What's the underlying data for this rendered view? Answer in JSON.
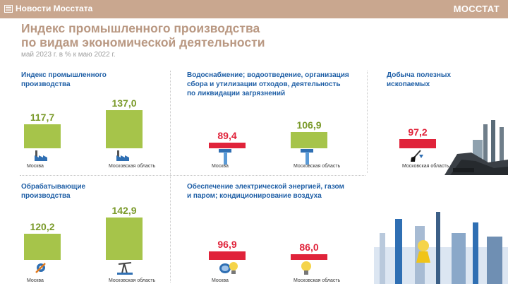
{
  "header": {
    "news_label": "Новости Мосстата",
    "logo": "МОССТАТ"
  },
  "title_line1": "Индекс промышленного производства",
  "title_line2": "по видам экономической деятельности",
  "subtitle": "май 2023 г. в % к маю 2022 г.",
  "colors": {
    "green": "#a6c44a",
    "red": "#e0233a",
    "title": "#b99882",
    "panel_title": "#1f5fa6"
  },
  "labels": {
    "moscow": "Москва",
    "region": "Московская область"
  },
  "chart_data": [
    {
      "type": "bar",
      "title_lines": [
        "Индекс промышленного",
        "производства"
      ],
      "categories": [
        "Москва",
        "Московская область"
      ],
      "values": [
        117.7,
        137.0
      ],
      "value_labels": [
        "117,7",
        "137,0"
      ],
      "colors": [
        "#a6c44a",
        "#a6c44a"
      ],
      "icons": [
        "factory-icon",
        "factory-icon"
      ]
    },
    {
      "type": "bar",
      "title_lines": [
        "Водоснабжение; водоотведение, организация",
        "сбора и утилизации отходов, деятельность",
        "по ликвидации загрязнений"
      ],
      "categories": [
        "Москва",
        "Московская область"
      ],
      "values": [
        89.4,
        106.9
      ],
      "value_labels": [
        "89,4",
        "106,9"
      ],
      "colors": [
        "#e0233a",
        "#a6c44a"
      ],
      "icons": [
        "water-pipe-icon",
        "water-pipe-icon"
      ]
    },
    {
      "type": "bar",
      "title_lines": [
        "Добыча полезных",
        "ископаемых"
      ],
      "categories": [
        "Московская область"
      ],
      "values": [
        97.2
      ],
      "value_labels": [
        "97,2"
      ],
      "colors": [
        "#e0233a"
      ],
      "icons": [
        "shovel-icon"
      ]
    },
    {
      "type": "bar",
      "title_lines": [
        "Обрабатывающие",
        "производства"
      ],
      "categories": [
        "Москва",
        "Московская область"
      ],
      "values": [
        120.2,
        142.9
      ],
      "value_labels": [
        "120,2",
        "142,9"
      ],
      "colors": [
        "#a6c44a",
        "#a6c44a"
      ],
      "icons": [
        "gear-wrench-icon",
        "oil-pump-icon"
      ]
    },
    {
      "type": "bar",
      "title_lines": [
        "Обеспечение электрической энергией, газом",
        "и паром; кондиционирование воздуха"
      ],
      "categories": [
        "Москва",
        "Московская область"
      ],
      "values": [
        96.9,
        86.0
      ],
      "value_labels": [
        "96,9",
        "86,0"
      ],
      "colors": [
        "#e0233a",
        "#e0233a"
      ],
      "icons": [
        "lightbulb-gas-icon",
        "lightbulb-icon"
      ]
    }
  ]
}
